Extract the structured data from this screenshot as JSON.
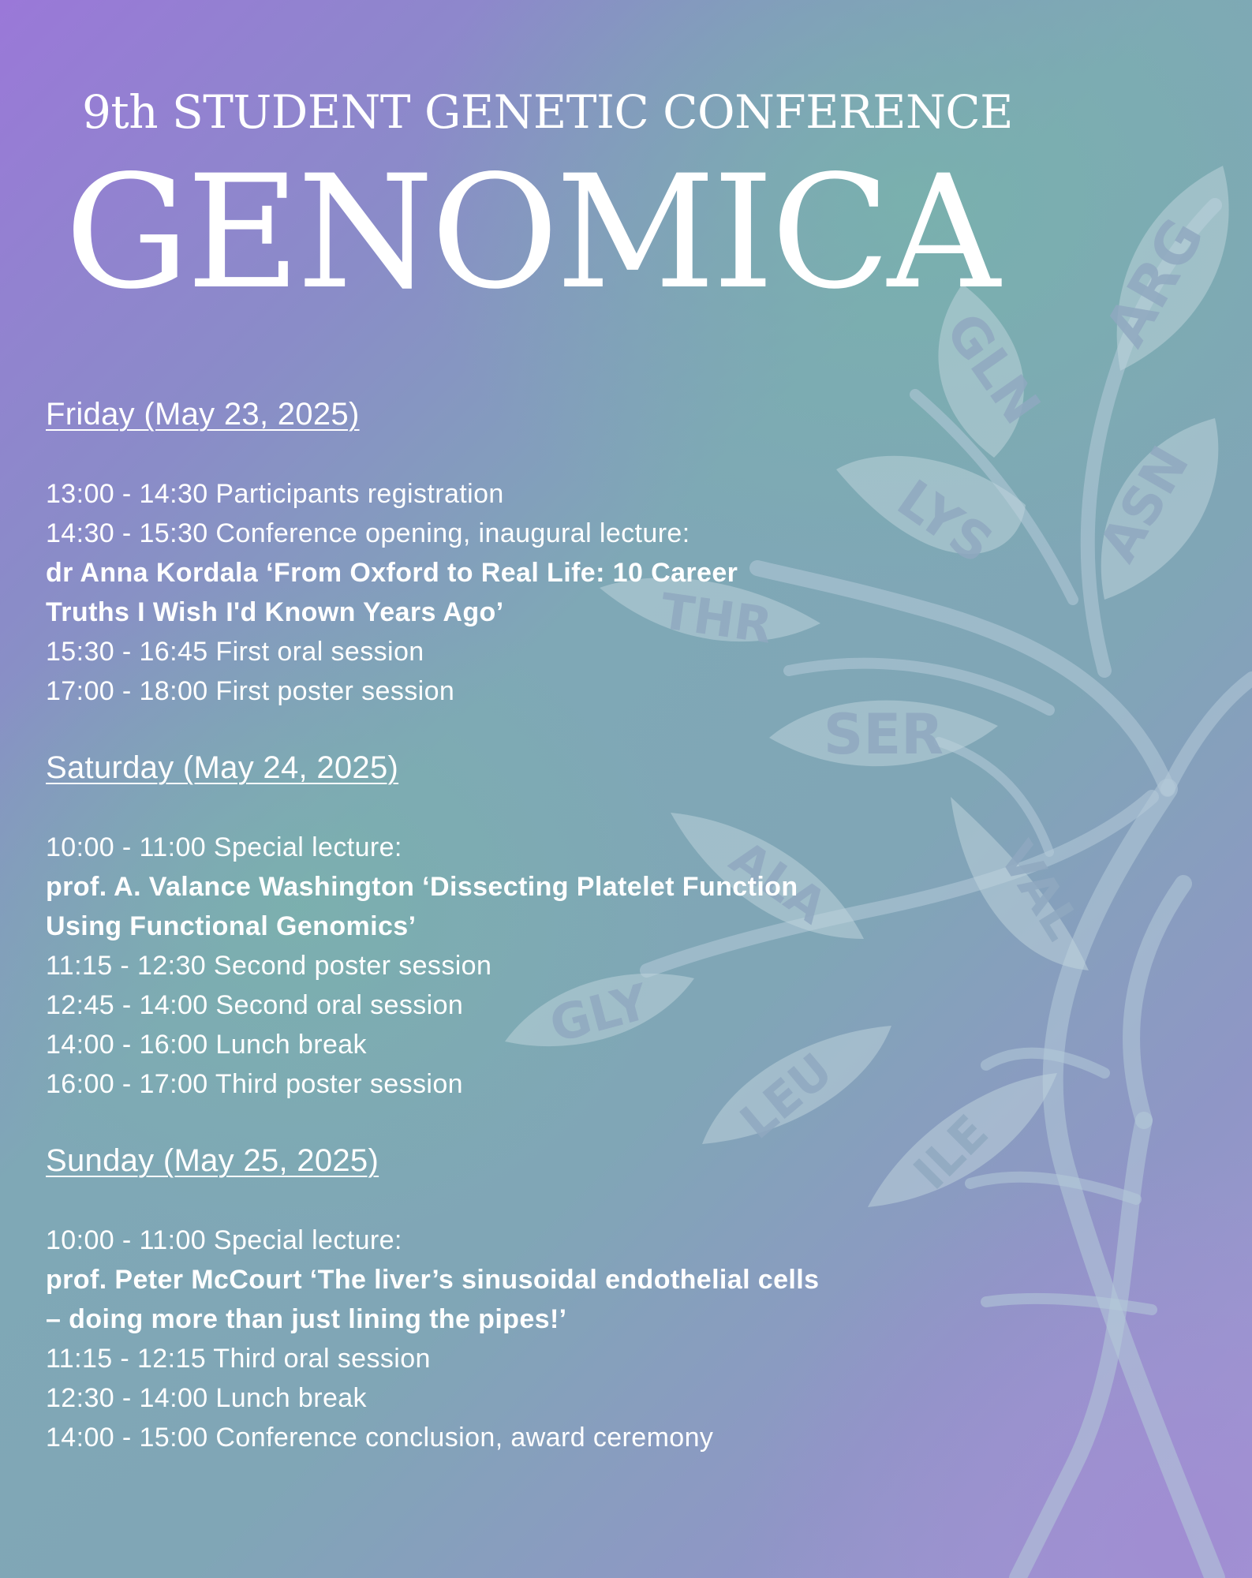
{
  "header": {
    "subtitle": "9th STUDENT GENETIC CONFERENCE",
    "title": "GENOMICA"
  },
  "decor": {
    "leaf_labels": [
      "ARG",
      "GLN",
      "ASN",
      "LYS",
      "THR",
      "SER",
      "VAL",
      "ALA",
      "GLY",
      "LEU",
      "ILE"
    ],
    "leaf_color": "#c2d6de"
  },
  "schedule": [
    {
      "heading": "Friday (May 23, 2025)",
      "lines": [
        {
          "text": "13:00 - 14:30  Participants registration",
          "bold": false
        },
        {
          "text": "14:30 - 15:30  Conference opening, inaugural lecture:",
          "bold": false
        },
        {
          "text": "dr Anna Kordala  ‘From Oxford to Real Life: 10 Career",
          "bold": true
        },
        {
          "text": "Truths I Wish I'd Known Years Ago’",
          "bold": true
        },
        {
          "text": "15:30 - 16:45  First oral session",
          "bold": false
        },
        {
          "text": "17:00 - 18:00 First poster session",
          "bold": false
        }
      ]
    },
    {
      "heading": "Saturday (May 24, 2025)",
      "lines": [
        {
          "text": "10:00 - 11:00  Special lecture:",
          "bold": false
        },
        {
          "text": "prof. A. Valance Washington  ‘Dissecting Platelet Function",
          "bold": true
        },
        {
          "text": "Using Functional Genomics’",
          "bold": true
        },
        {
          "text": "11:15 - 12:30  Second poster session",
          "bold": false
        },
        {
          "text": "12:45 - 14:00 Second oral session",
          "bold": false
        },
        {
          "text": "14:00 - 16:00  Lunch break",
          "bold": false
        },
        {
          "text": "16:00 - 17:00 Third poster session",
          "bold": false
        }
      ]
    },
    {
      "heading": "Sunday (May 25, 2025)",
      "lines": [
        {
          "text": "10:00 - 11:00  Special lecture:",
          "bold": false
        },
        {
          "text": "prof. Peter McCourt ‘The liver’s sinusoidal endothelial cells",
          "bold": true
        },
        {
          "text": "– doing more than just lining the pipes!’",
          "bold": true
        },
        {
          "text": "11:15 - 12:15 Third oral session",
          "bold": false
        },
        {
          "text": "12:30 - 14:00 Lunch break",
          "bold": false
        },
        {
          "text": "14:00 - 15:00 Conference conclusion, award ceremony",
          "bold": false
        }
      ]
    }
  ]
}
